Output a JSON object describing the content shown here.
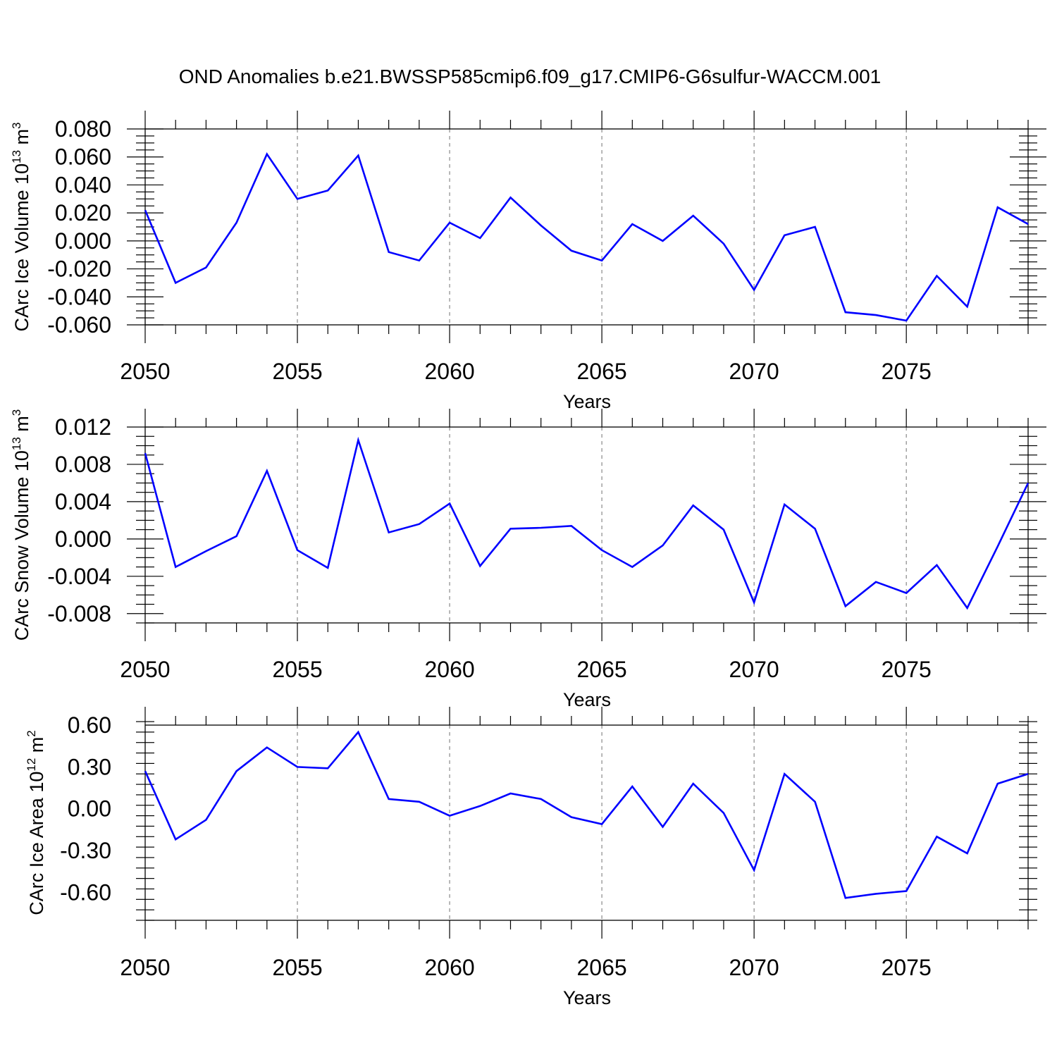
{
  "figure": {
    "title": "OND Anomalies b.e21.BWSSP585cmip6.f09_g17.CMIP6-G6sulfur-WACCM.001"
  },
  "chart_data": [
    {
      "type": "line",
      "ylabel": {
        "text": "CArc Ice Volume 10",
        "exp1": "13",
        "mid": " m",
        "exp2": "3"
      },
      "xlabel": "Years",
      "xlim": [
        2050,
        2079
      ],
      "ylim": [
        -0.06,
        0.08
      ],
      "x_ticks": [
        "2050",
        "2055",
        "2060",
        "2065",
        "2070",
        "2075"
      ],
      "x_tick_values": [
        2050,
        2055,
        2060,
        2065,
        2070,
        2075
      ],
      "y_ticks": [
        "0.080",
        "0.060",
        "0.040",
        "0.020",
        "0.000",
        "-0.020",
        "-0.040",
        "-0.060"
      ],
      "y_tick_values": [
        0.08,
        0.06,
        0.04,
        0.02,
        0.0,
        -0.02,
        -0.04,
        -0.06
      ],
      "grid": "dashed vertical at major x ticks",
      "series_color": "#0000ff",
      "x": [
        2050,
        2051,
        2052,
        2053,
        2054,
        2055,
        2056,
        2057,
        2058,
        2059,
        2060,
        2061,
        2062,
        2063,
        2064,
        2065,
        2066,
        2067,
        2068,
        2069,
        2070,
        2071,
        2072,
        2073,
        2074,
        2075,
        2076,
        2077,
        2078,
        2079
      ],
      "y": [
        0.022,
        -0.03,
        -0.019,
        0.013,
        0.062,
        0.03,
        0.036,
        0.061,
        -0.008,
        -0.014,
        0.013,
        0.002,
        0.031,
        0.011,
        -0.007,
        -0.014,
        0.012,
        0.0,
        0.018,
        -0.002,
        -0.035,
        0.004,
        0.01,
        -0.051,
        -0.053,
        -0.057,
        -0.025,
        -0.047,
        0.024,
        0.012
      ]
    },
    {
      "type": "line",
      "ylabel": {
        "text": "CArc Snow Volume 10",
        "exp1": "13",
        "mid": " m",
        "exp2": "3"
      },
      "xlabel": "Years",
      "xlim": [
        2050,
        2079
      ],
      "ylim": [
        -0.009,
        0.012
      ],
      "x_ticks": [
        "2050",
        "2055",
        "2060",
        "2065",
        "2070",
        "2075"
      ],
      "x_tick_values": [
        2050,
        2055,
        2060,
        2065,
        2070,
        2075
      ],
      "y_ticks": [
        "0.012",
        "0.008",
        "0.004",
        "0.000",
        "-0.004",
        "-0.008"
      ],
      "y_tick_values": [
        0.012,
        0.008,
        0.004,
        0.0,
        -0.004,
        -0.008
      ],
      "grid": "dashed vertical at major x ticks",
      "series_color": "#0000ff",
      "x": [
        2050,
        2051,
        2052,
        2053,
        2054,
        2055,
        2056,
        2057,
        2058,
        2059,
        2060,
        2061,
        2062,
        2063,
        2064,
        2065,
        2066,
        2067,
        2068,
        2069,
        2070,
        2071,
        2072,
        2073,
        2074,
        2075,
        2076,
        2077,
        2078,
        2079
      ],
      "y": [
        0.0092,
        -0.003,
        -0.0013,
        0.0003,
        0.0073,
        -0.0012,
        -0.0031,
        0.0106,
        0.0007,
        0.0016,
        0.0038,
        -0.0029,
        0.0011,
        0.0012,
        0.0014,
        -0.0012,
        -0.003,
        -0.0007,
        0.0036,
        0.001,
        -0.0068,
        0.0037,
        0.0011,
        -0.0072,
        -0.0046,
        -0.0058,
        -0.0028,
        -0.0074,
        -0.0008,
        0.006
      ]
    },
    {
      "type": "line",
      "ylabel": {
        "text": "CArc Ice Area 10",
        "exp1": "12",
        "mid": " m",
        "exp2": "2"
      },
      "xlabel": "Years",
      "xlim": [
        2050,
        2079
      ],
      "ylim": [
        -0.8,
        0.6
      ],
      "x_ticks": [
        "2050",
        "2055",
        "2060",
        "2065",
        "2070",
        "2075"
      ],
      "x_tick_values": [
        2050,
        2055,
        2060,
        2065,
        2070,
        2075
      ],
      "y_ticks": [
        "0.60",
        "0.30",
        "0.00",
        "-0.30",
        "-0.60"
      ],
      "y_tick_values": [
        0.6,
        0.3,
        0.0,
        -0.3,
        -0.6
      ],
      "grid": "dashed vertical at major x ticks",
      "series_color": "#0000ff",
      "x": [
        2050,
        2051,
        2052,
        2053,
        2054,
        2055,
        2056,
        2057,
        2058,
        2059,
        2060,
        2061,
        2062,
        2063,
        2064,
        2065,
        2066,
        2067,
        2068,
        2069,
        2070,
        2071,
        2072,
        2073,
        2074,
        2075,
        2076,
        2077,
        2078,
        2079
      ],
      "y": [
        0.27,
        -0.22,
        -0.08,
        0.27,
        0.44,
        0.3,
        0.29,
        0.55,
        0.07,
        0.05,
        -0.05,
        0.02,
        0.11,
        0.07,
        -0.06,
        -0.11,
        0.16,
        -0.13,
        0.18,
        -0.03,
        -0.44,
        0.25,
        0.05,
        -0.64,
        -0.61,
        -0.59,
        -0.2,
        -0.32,
        0.18,
        0.25
      ]
    }
  ]
}
